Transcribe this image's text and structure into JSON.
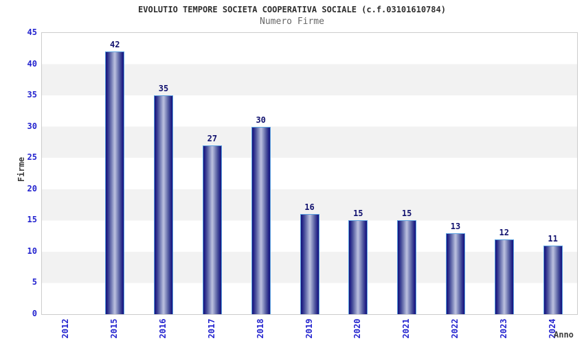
{
  "header": {
    "title": "EVOLUTIO TEMPORE SOCIETA COOPERATIVA SOCIALE (c.f.03101610784)",
    "subtitle": "Numero Firme"
  },
  "chart_data": {
    "type": "bar",
    "title": "EVOLUTIO TEMPORE SOCIETA COOPERATIVA SOCIALE (c.f.03101610784)",
    "subtitle": "Numero Firme",
    "categories": [
      "2012",
      "2015",
      "2016",
      "2017",
      "2018",
      "2019",
      "2020",
      "2021",
      "2022",
      "2023",
      "2024"
    ],
    "values": [
      0,
      42,
      35,
      27,
      30,
      16,
      15,
      15,
      13,
      12,
      11
    ],
    "xlabel": "Anno",
    "ylabel": "Firme",
    "ylim": [
      0,
      45
    ],
    "yticks": [
      0,
      5,
      10,
      15,
      20,
      25,
      30,
      35,
      40,
      45
    ],
    "grid": "alternating-horizontal-bands",
    "legend_position": "none",
    "colors": {
      "bar_dark": "#15157a",
      "bar_highlight": "#b7bcdc",
      "bar_border": "#5aa0e0",
      "value_label": "#10106e",
      "tick_label": "#2424cf",
      "band_gray": "#f2f2f2",
      "band_white": "#ffffff",
      "plot_border": "#cccccc",
      "title_color": "#2e2e2e",
      "subtitle_color": "#666666",
      "axis_title_color": "#3d3d3d"
    }
  }
}
